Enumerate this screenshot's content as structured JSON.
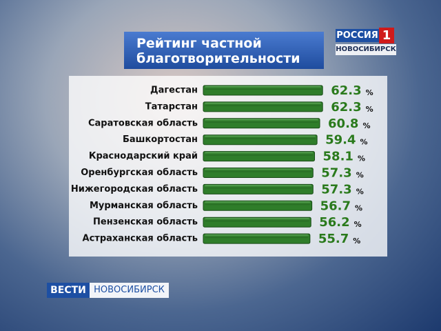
{
  "chart_data": {
    "type": "bar",
    "orientation": "horizontal",
    "title": "Рейтинг частной благотворительности",
    "categories": [
      "Дагестан",
      "Татарстан",
      "Саратовская область",
      "Башкортостан",
      "Краснодарский край",
      "Оренбургская область",
      "Нижегородская область",
      "Мурманская область",
      "Пензенская область",
      "Астраханская область"
    ],
    "values": [
      62.3,
      62.3,
      60.8,
      59.4,
      58.1,
      57.3,
      57.3,
      56.7,
      56.2,
      55.7
    ],
    "unit": "%",
    "color": "#2f7d2a",
    "value_color": "#2a7a1c"
  },
  "channel_logo": {
    "name": "РОССИЯ",
    "number": "1",
    "region": "НОВОСИБИРСК"
  },
  "program_logo": {
    "name": "ВЕСТИ",
    "region": "НОВОСИБИРСК"
  }
}
